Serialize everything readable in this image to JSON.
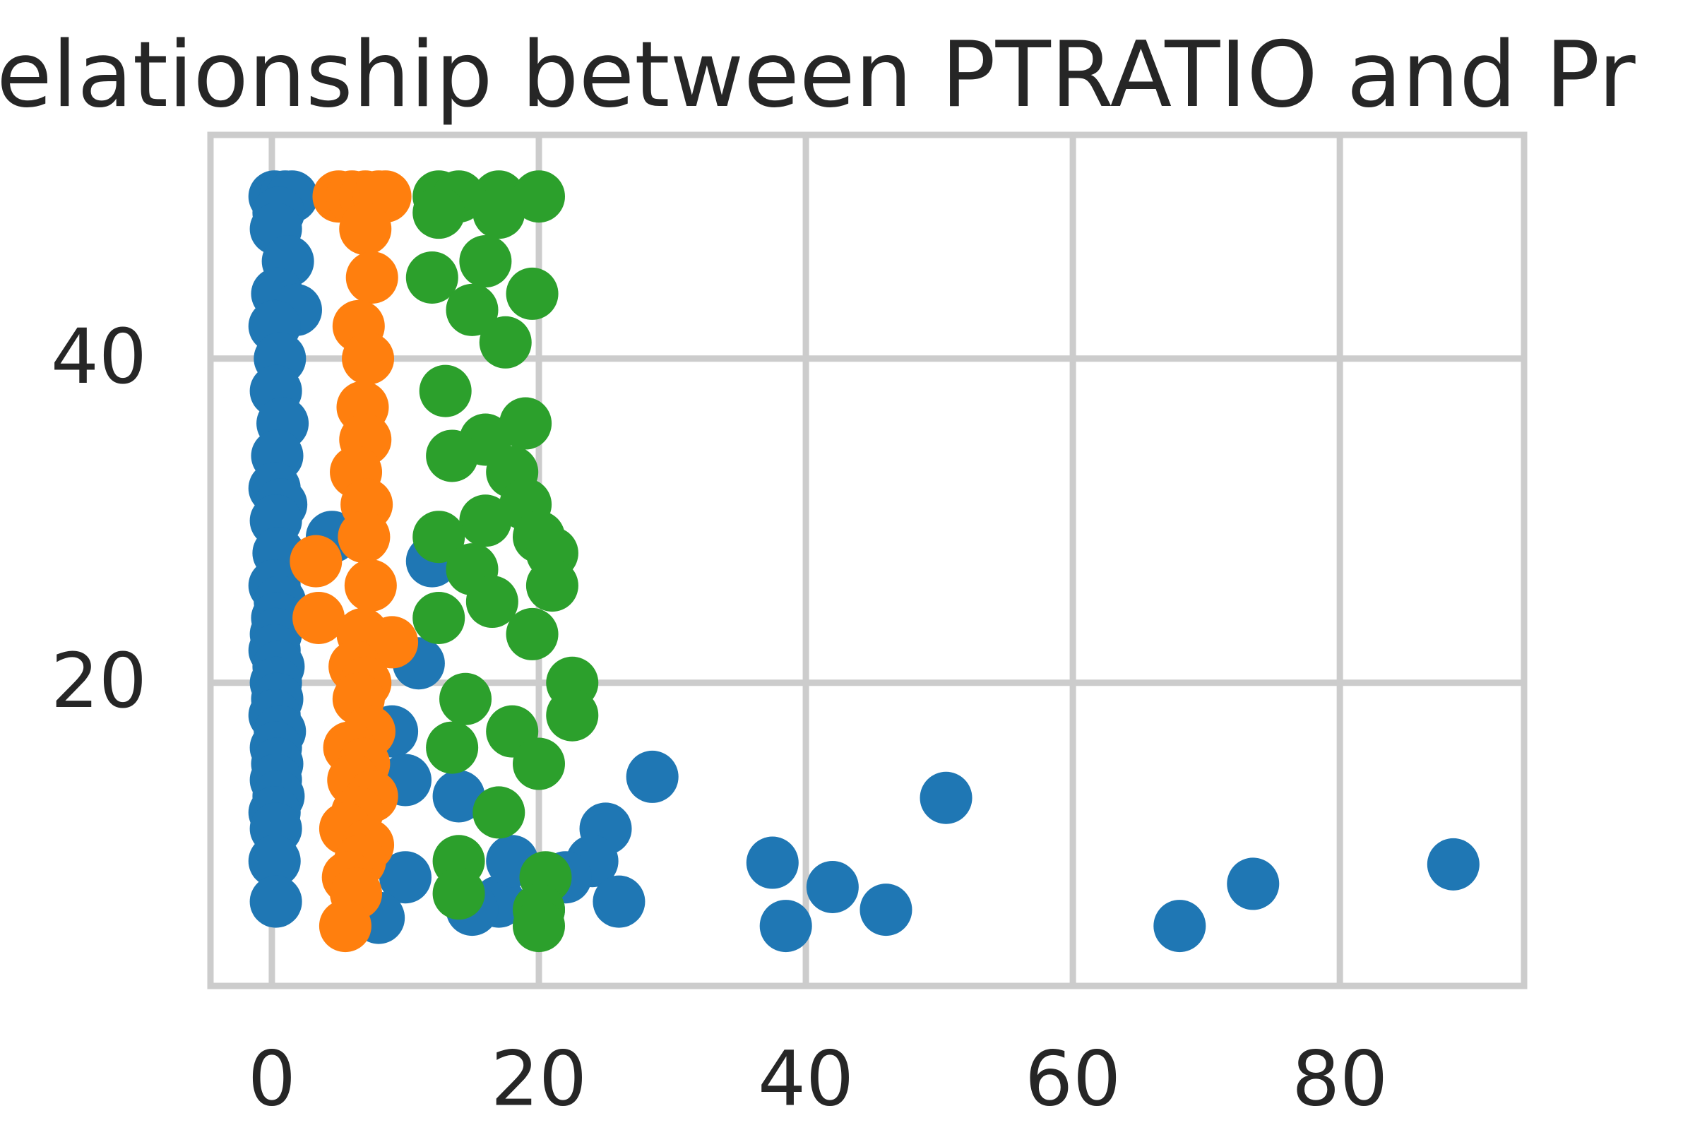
{
  "chart_data": {
    "type": "scatter",
    "title": "elationship between PTRATIO and Pr",
    "xlim": [
      -4.6,
      93.8
    ],
    "ylim": [
      1.3,
      53.8
    ],
    "xticks": [
      0,
      20,
      40,
      60,
      80
    ],
    "yticks": [
      20,
      40
    ],
    "grid": true,
    "series": [
      {
        "color": "#1f77b4",
        "x": [
          0.2,
          1,
          1.5,
          0.5,
          0.3,
          1.2,
          0.4,
          1.8,
          0.2,
          0.6,
          0.3,
          0.8,
          0.4,
          0.2,
          0.7,
          0.3,
          0.5,
          0.2,
          0.6,
          0.4,
          0.3,
          0.2,
          0.5,
          0.3,
          0.4,
          0.2,
          0.6,
          0.3,
          0.4,
          0.3,
          0.5,
          0.2,
          0.3,
          0.2,
          0.3,
          4.5,
          12,
          11,
          9,
          10,
          14,
          25,
          24,
          26,
          8,
          17,
          15,
          10,
          22,
          20,
          18,
          28.5,
          37.5,
          38.5,
          42,
          46,
          50.5,
          68,
          73.5,
          88.5
        ],
        "values": [
          50,
          50,
          50,
          49,
          48,
          46,
          44,
          43,
          42,
          40,
          38,
          36,
          34,
          32,
          31,
          30,
          28,
          26,
          25,
          24,
          23,
          22,
          21,
          20,
          19,
          18,
          17,
          16,
          15,
          14,
          13,
          12,
          11,
          9,
          6.5,
          29,
          27.5,
          21.2,
          17,
          8,
          13,
          11,
          9,
          6.5,
          5.5,
          6.5,
          6,
          14,
          8,
          6,
          9,
          14.2,
          8.9,
          5,
          7.4,
          6,
          12.9,
          5,
          7.6,
          8.8
        ]
      },
      {
        "color": "#ff7f0e",
        "x": [
          5,
          6,
          7,
          8,
          8.5,
          7,
          7.5,
          6.5,
          7.2,
          6.8,
          7,
          6.3,
          7.1,
          6.9,
          3.3,
          7.4,
          3.5,
          6.8,
          9,
          6.2,
          7,
          6.5,
          7.3,
          5.8,
          6.9,
          6.1,
          7.5,
          6.4,
          5.5,
          7.2,
          6.6,
          5.7,
          6.3,
          5.5
        ],
        "values": [
          50,
          50,
          50,
          50,
          50,
          48,
          45,
          42,
          40,
          37,
          35,
          33,
          31,
          29,
          27.5,
          26,
          24,
          23,
          22.5,
          21,
          20,
          19,
          17,
          16,
          15,
          14,
          13,
          12,
          11,
          10,
          9,
          8,
          7,
          5
        ]
      },
      {
        "color": "#2ca02c",
        "x": [
          12.5,
          14,
          17,
          20,
          12.5,
          17,
          16,
          12,
          19.5,
          15,
          17.5,
          13,
          19,
          16,
          13.5,
          18,
          19,
          16,
          12.5,
          20,
          21,
          15,
          21,
          16.5,
          12.5,
          19.5,
          22.5,
          14.5,
          22.5,
          18,
          13.5,
          20,
          17,
          14,
          20.5,
          14,
          20,
          20
        ],
        "values": [
          50,
          50,
          50,
          50,
          49,
          49,
          46,
          45,
          44,
          43,
          41,
          38,
          36,
          35,
          34,
          33,
          31,
          30,
          29,
          29,
          28,
          27,
          26,
          25,
          24,
          23,
          20,
          19,
          18,
          17,
          16,
          15,
          12,
          9,
          8,
          7,
          6,
          5
        ]
      }
    ]
  }
}
